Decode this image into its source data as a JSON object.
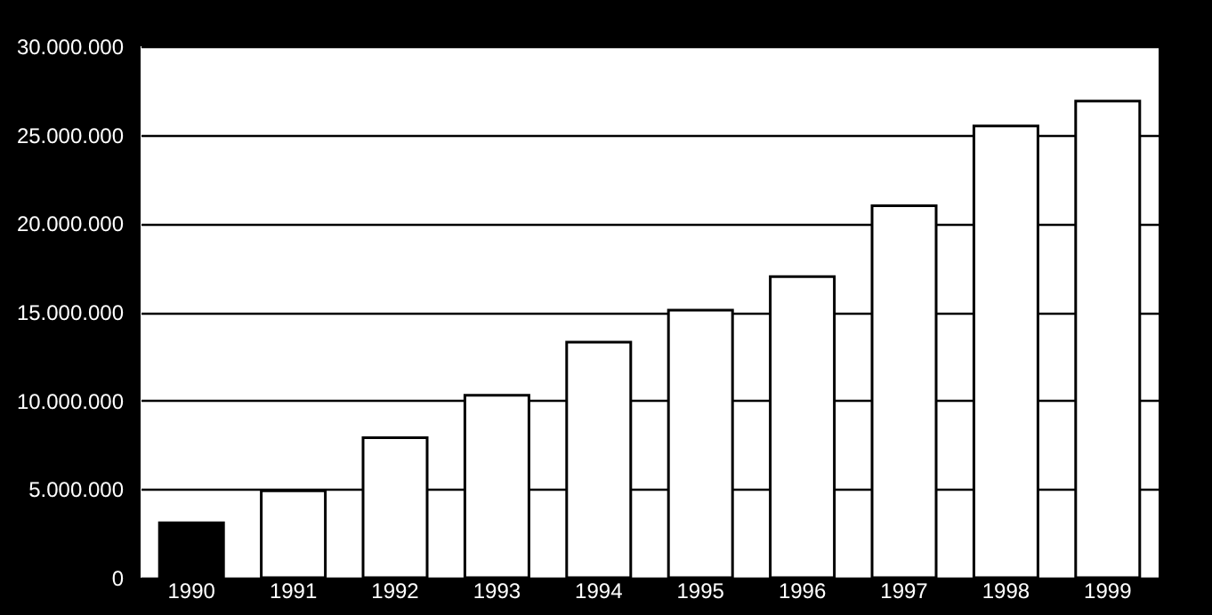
{
  "chart_data": {
    "type": "bar",
    "categories": [
      "1990",
      "1991",
      "1992",
      "1993",
      "1994",
      "1995",
      "1996",
      "1997",
      "1998",
      "1999"
    ],
    "values": [
      3100000,
      4900000,
      7900000,
      10300000,
      13300000,
      15100000,
      17000000,
      21000000,
      25500000,
      26900000
    ],
    "colors": [
      "#000000",
      "#ffffff",
      "#ffffff",
      "#ffffff",
      "#ffffff",
      "#ffffff",
      "#ffffff",
      "#ffffff",
      "#ffffff",
      "#ffffff"
    ],
    "ylim": [
      0,
      30000000
    ],
    "yticks": [
      0,
      {
        "value": 5000000,
        "label": "5.000.000"
      },
      {
        "value": 10000000,
        "label": "10.000.000"
      },
      {
        "value": 15000000,
        "label": "15.000.000"
      },
      {
        "value": 20000000,
        "label": "20.000.000"
      },
      {
        "value": 25000000,
        "label": "25.000.000"
      },
      {
        "value": 30000000,
        "label": "30.000.000"
      }
    ],
    "grid": "y"
  }
}
